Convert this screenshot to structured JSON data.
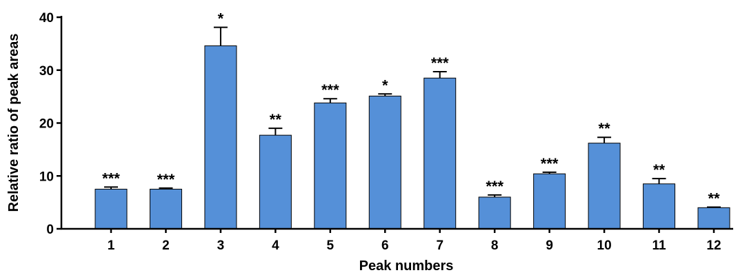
{
  "chart_data": {
    "type": "bar",
    "title": "",
    "xlabel": "Peak numbers",
    "ylabel": "Relative ratio of peak areas",
    "ylim": [
      0,
      40
    ],
    "yticks": [
      0,
      10,
      20,
      30,
      40
    ],
    "categories": [
      "1",
      "2",
      "3",
      "4",
      "5",
      "6",
      "7",
      "8",
      "9",
      "10",
      "11",
      "12"
    ],
    "values": [
      7.5,
      7.5,
      34.6,
      17.7,
      23.8,
      25.1,
      28.5,
      6.0,
      10.4,
      16.2,
      8.5,
      4.0
    ],
    "errors": [
      0.4,
      0.2,
      3.5,
      1.3,
      0.8,
      0.4,
      1.2,
      0.4,
      0.3,
      1.1,
      1.0,
      0.1
    ],
    "significance": [
      "***",
      "***",
      "*",
      "**",
      "***",
      "*",
      "***",
      "***",
      "***",
      "**",
      "**",
      "**"
    ],
    "bar_color": "#5590d8",
    "grid": false,
    "legend": "none"
  }
}
